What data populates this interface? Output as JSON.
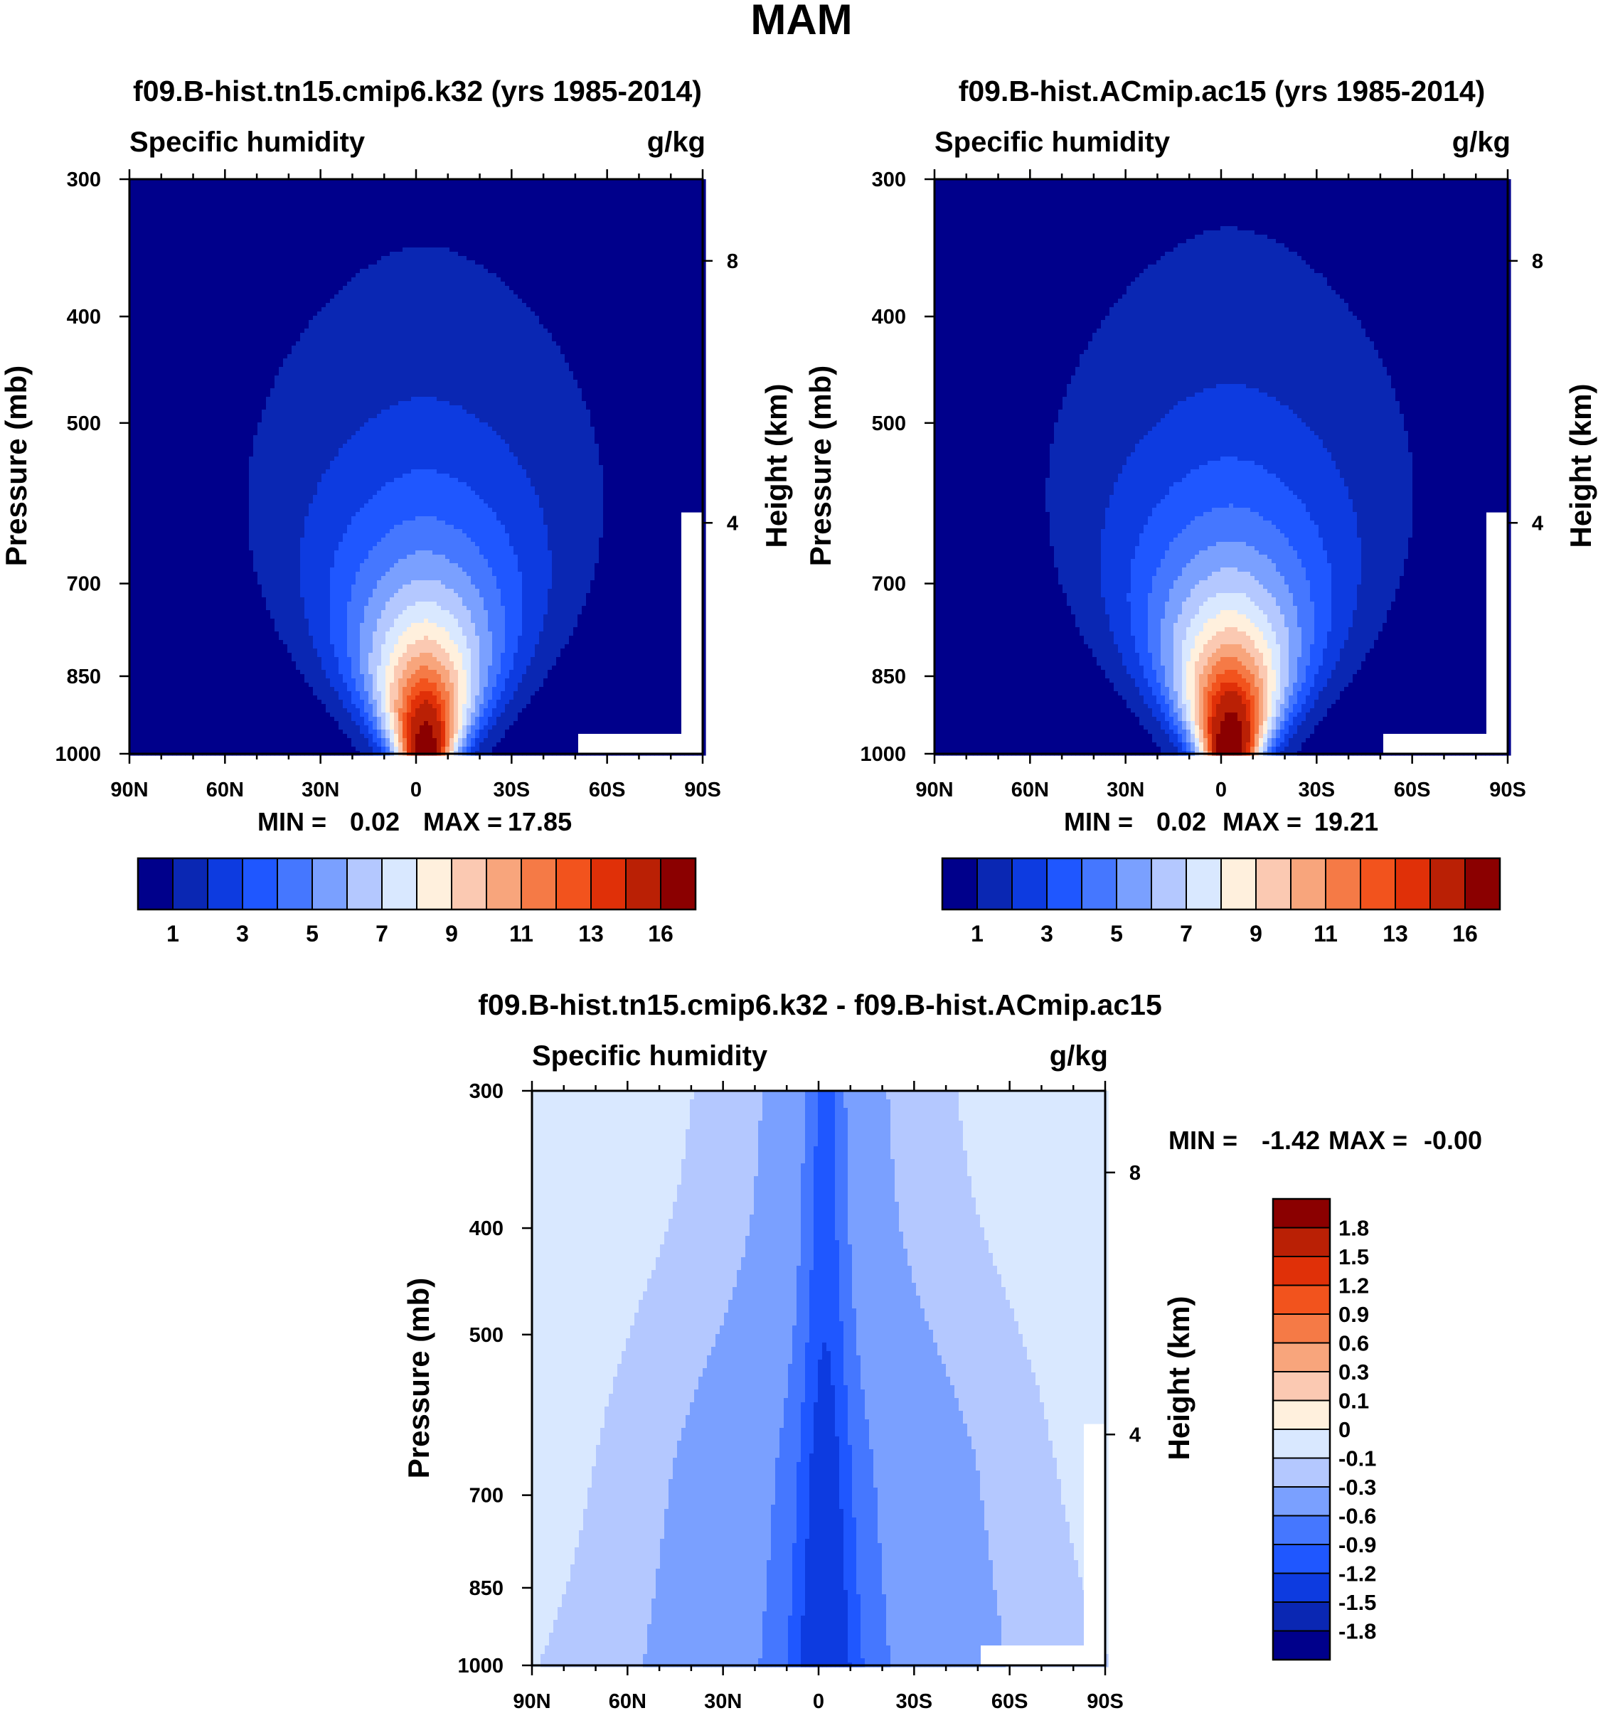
{
  "figure_title": "MAM",
  "chart_data": [
    {
      "type": "contour",
      "id": "panel_a",
      "title": "f09.B-hist.tn15.cmip6.k32 (yrs 1985-2014)",
      "left_label": "Specific humidity",
      "units": "g/kg",
      "ylabel": "Pressure (mb)",
      "y2label": "Height (km)",
      "x_ticks": [
        "90N",
        "60N",
        "30N",
        "0",
        "30S",
        "60S",
        "90S"
      ],
      "y_ticks": [
        "300",
        "400",
        "500",
        "700",
        "850",
        "1000"
      ],
      "y_tick_values": [
        300,
        400,
        500,
        700,
        850,
        1000
      ],
      "y2_ticks": [
        "8",
        "4"
      ],
      "y2_tick_values_km": [
        8,
        4
      ],
      "ylim": [
        300,
        1000
      ],
      "stats": {
        "min_label": "MIN =",
        "min": "0.02",
        "max_label": "MAX =",
        "max": "17.85"
      },
      "contour_levels": [
        1,
        2,
        3,
        4,
        5,
        6,
        7,
        8,
        9,
        10,
        11,
        12,
        13,
        14,
        16
      ],
      "colorbar_labels": [
        "1",
        "3",
        "5",
        "7",
        "9",
        "11",
        "13",
        "16"
      ],
      "peak_value": 17.85,
      "peak_lat": -3,
      "fill_colors": [
        "#00008b",
        "#0a27b3",
        "#0d3be0",
        "#1f57ff",
        "#4577ff",
        "#7aa0ff",
        "#b4c8ff",
        "#d9e8ff",
        "#fff0dd",
        "#fbc9b2",
        "#f8a57c",
        "#f57a46",
        "#f2531d",
        "#e03008",
        "#ba2005",
        "#8b0000"
      ]
    },
    {
      "type": "contour",
      "id": "panel_b",
      "title": "f09.B-hist.ACmip.ac15 (yrs 1985-2014)",
      "left_label": "Specific humidity",
      "units": "g/kg",
      "ylabel": "Pressure (mb)",
      "y2label": "Height (km)",
      "x_ticks": [
        "90N",
        "60N",
        "30N",
        "0",
        "30S",
        "60S",
        "90S"
      ],
      "y_ticks": [
        "300",
        "400",
        "500",
        "700",
        "850",
        "1000"
      ],
      "y_tick_values": [
        300,
        400,
        500,
        700,
        850,
        1000
      ],
      "y2_ticks": [
        "8",
        "4"
      ],
      "y2_tick_values_km": [
        8,
        4
      ],
      "ylim": [
        300,
        1000
      ],
      "stats": {
        "min_label": "MIN =",
        "min": "0.02",
        "max_label": "MAX =",
        "max": "19.21"
      },
      "contour_levels": [
        1,
        2,
        3,
        4,
        5,
        6,
        7,
        8,
        9,
        10,
        11,
        12,
        13,
        14,
        16
      ],
      "colorbar_labels": [
        "1",
        "3",
        "5",
        "7",
        "9",
        "11",
        "13",
        "16"
      ],
      "peak_value": 19.21,
      "peak_lat": -3,
      "fill_colors": [
        "#00008b",
        "#0a27b3",
        "#0d3be0",
        "#1f57ff",
        "#4577ff",
        "#7aa0ff",
        "#b4c8ff",
        "#d9e8ff",
        "#fff0dd",
        "#fbc9b2",
        "#f8a57c",
        "#f57a46",
        "#f2531d",
        "#e03008",
        "#ba2005",
        "#8b0000"
      ]
    },
    {
      "type": "contour",
      "id": "panel_diff",
      "title": "f09.B-hist.tn15.cmip6.k32 - f09.B-hist.ACmip.ac15",
      "left_label": "Specific humidity",
      "units": "g/kg",
      "ylabel": "Pressure (mb)",
      "y2label": "Height (km)",
      "x_ticks": [
        "90N",
        "60N",
        "30N",
        "0",
        "30S",
        "60S",
        "90S"
      ],
      "y_ticks": [
        "300",
        "400",
        "500",
        "700",
        "850",
        "1000"
      ],
      "y_tick_values": [
        300,
        400,
        500,
        700,
        850,
        1000
      ],
      "y2_ticks": [
        "8",
        "4"
      ],
      "y2_tick_values_km": [
        8,
        4
      ],
      "ylim": [
        300,
        1000
      ],
      "stats": {
        "min_label": "MIN =",
        "min": "-1.42",
        "max_label": "MAX =",
        "max": "-0.00"
      },
      "diff_levels": [
        -0.1,
        -0.3,
        -0.6,
        -0.9,
        -1.2
      ],
      "diff_fill_colors": [
        "#d9e8ff",
        "#b4c8ff",
        "#7aa0ff",
        "#4577ff",
        "#1f57ff",
        "#0d3be0"
      ],
      "colorbar_labels": [
        "1.8",
        "1.5",
        "1.2",
        "0.9",
        "0.6",
        "0.3",
        "0.1",
        "0",
        "-0.1",
        "-0.3",
        "-0.6",
        "-0.9",
        "-1.2",
        "-1.5",
        "-1.8"
      ],
      "colorbar_colors_top_to_bottom": [
        "#8b0000",
        "#ba2005",
        "#e03008",
        "#f2531d",
        "#f57a46",
        "#f8a57c",
        "#fbc9b2",
        "#fff0dd",
        "#d9e8ff",
        "#b4c8ff",
        "#7aa0ff",
        "#4577ff",
        "#1f57ff",
        "#0d3be0",
        "#0a27b3",
        "#00008b"
      ]
    }
  ]
}
